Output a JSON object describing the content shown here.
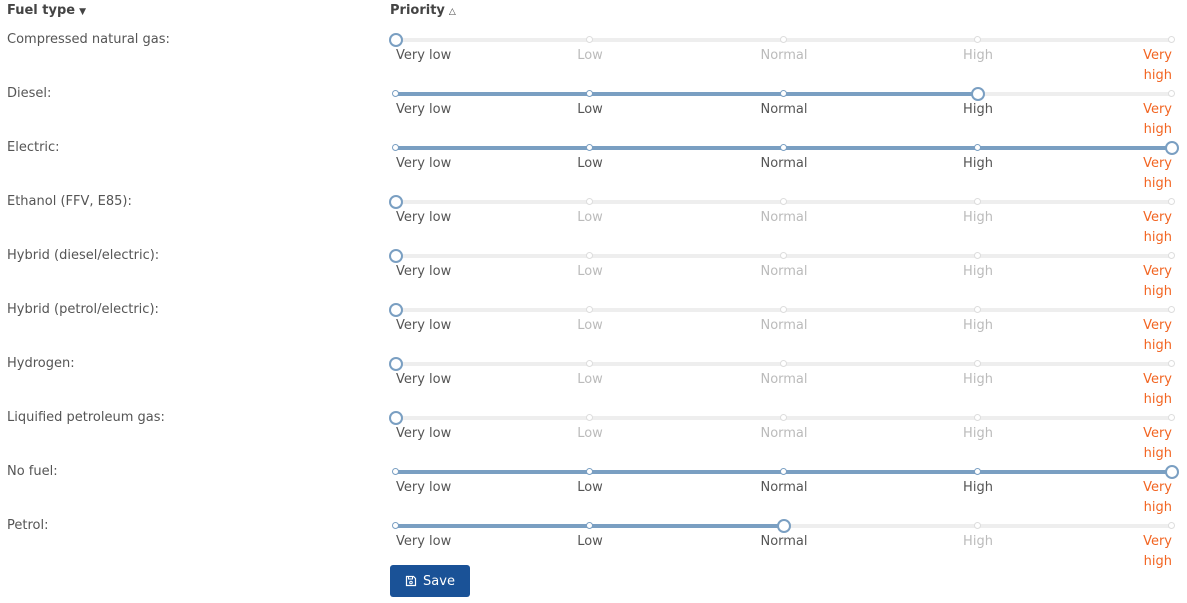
{
  "headers": {
    "fuel_type": "Fuel type",
    "fuel_sort_icon": "triangle-down-icon",
    "priority": "Priority",
    "priority_sort_icon": "triangle-up-outline-icon"
  },
  "levels": [
    "Very low",
    "Low",
    "Normal",
    "High",
    "Very high"
  ],
  "colors": {
    "accent": "#7a9fc2",
    "very_high": "#f26522",
    "button": "#1a5297"
  },
  "rows": [
    {
      "label": "Compressed natural gas:",
      "value": 0
    },
    {
      "label": "Diesel:",
      "value": 3
    },
    {
      "label": "Electric:",
      "value": 4
    },
    {
      "label": "Ethanol (FFV, E85):",
      "value": 0
    },
    {
      "label": "Hybrid (diesel/electric):",
      "value": 0
    },
    {
      "label": "Hybrid (petrol/electric):",
      "value": 0
    },
    {
      "label": "Hydrogen:",
      "value": 0
    },
    {
      "label": "Liquified petroleum gas:",
      "value": 0
    },
    {
      "label": "No fuel:",
      "value": 4
    },
    {
      "label": "Petrol:",
      "value": 2
    }
  ],
  "save": {
    "label": "Save",
    "icon": "floppy-disk-icon"
  }
}
